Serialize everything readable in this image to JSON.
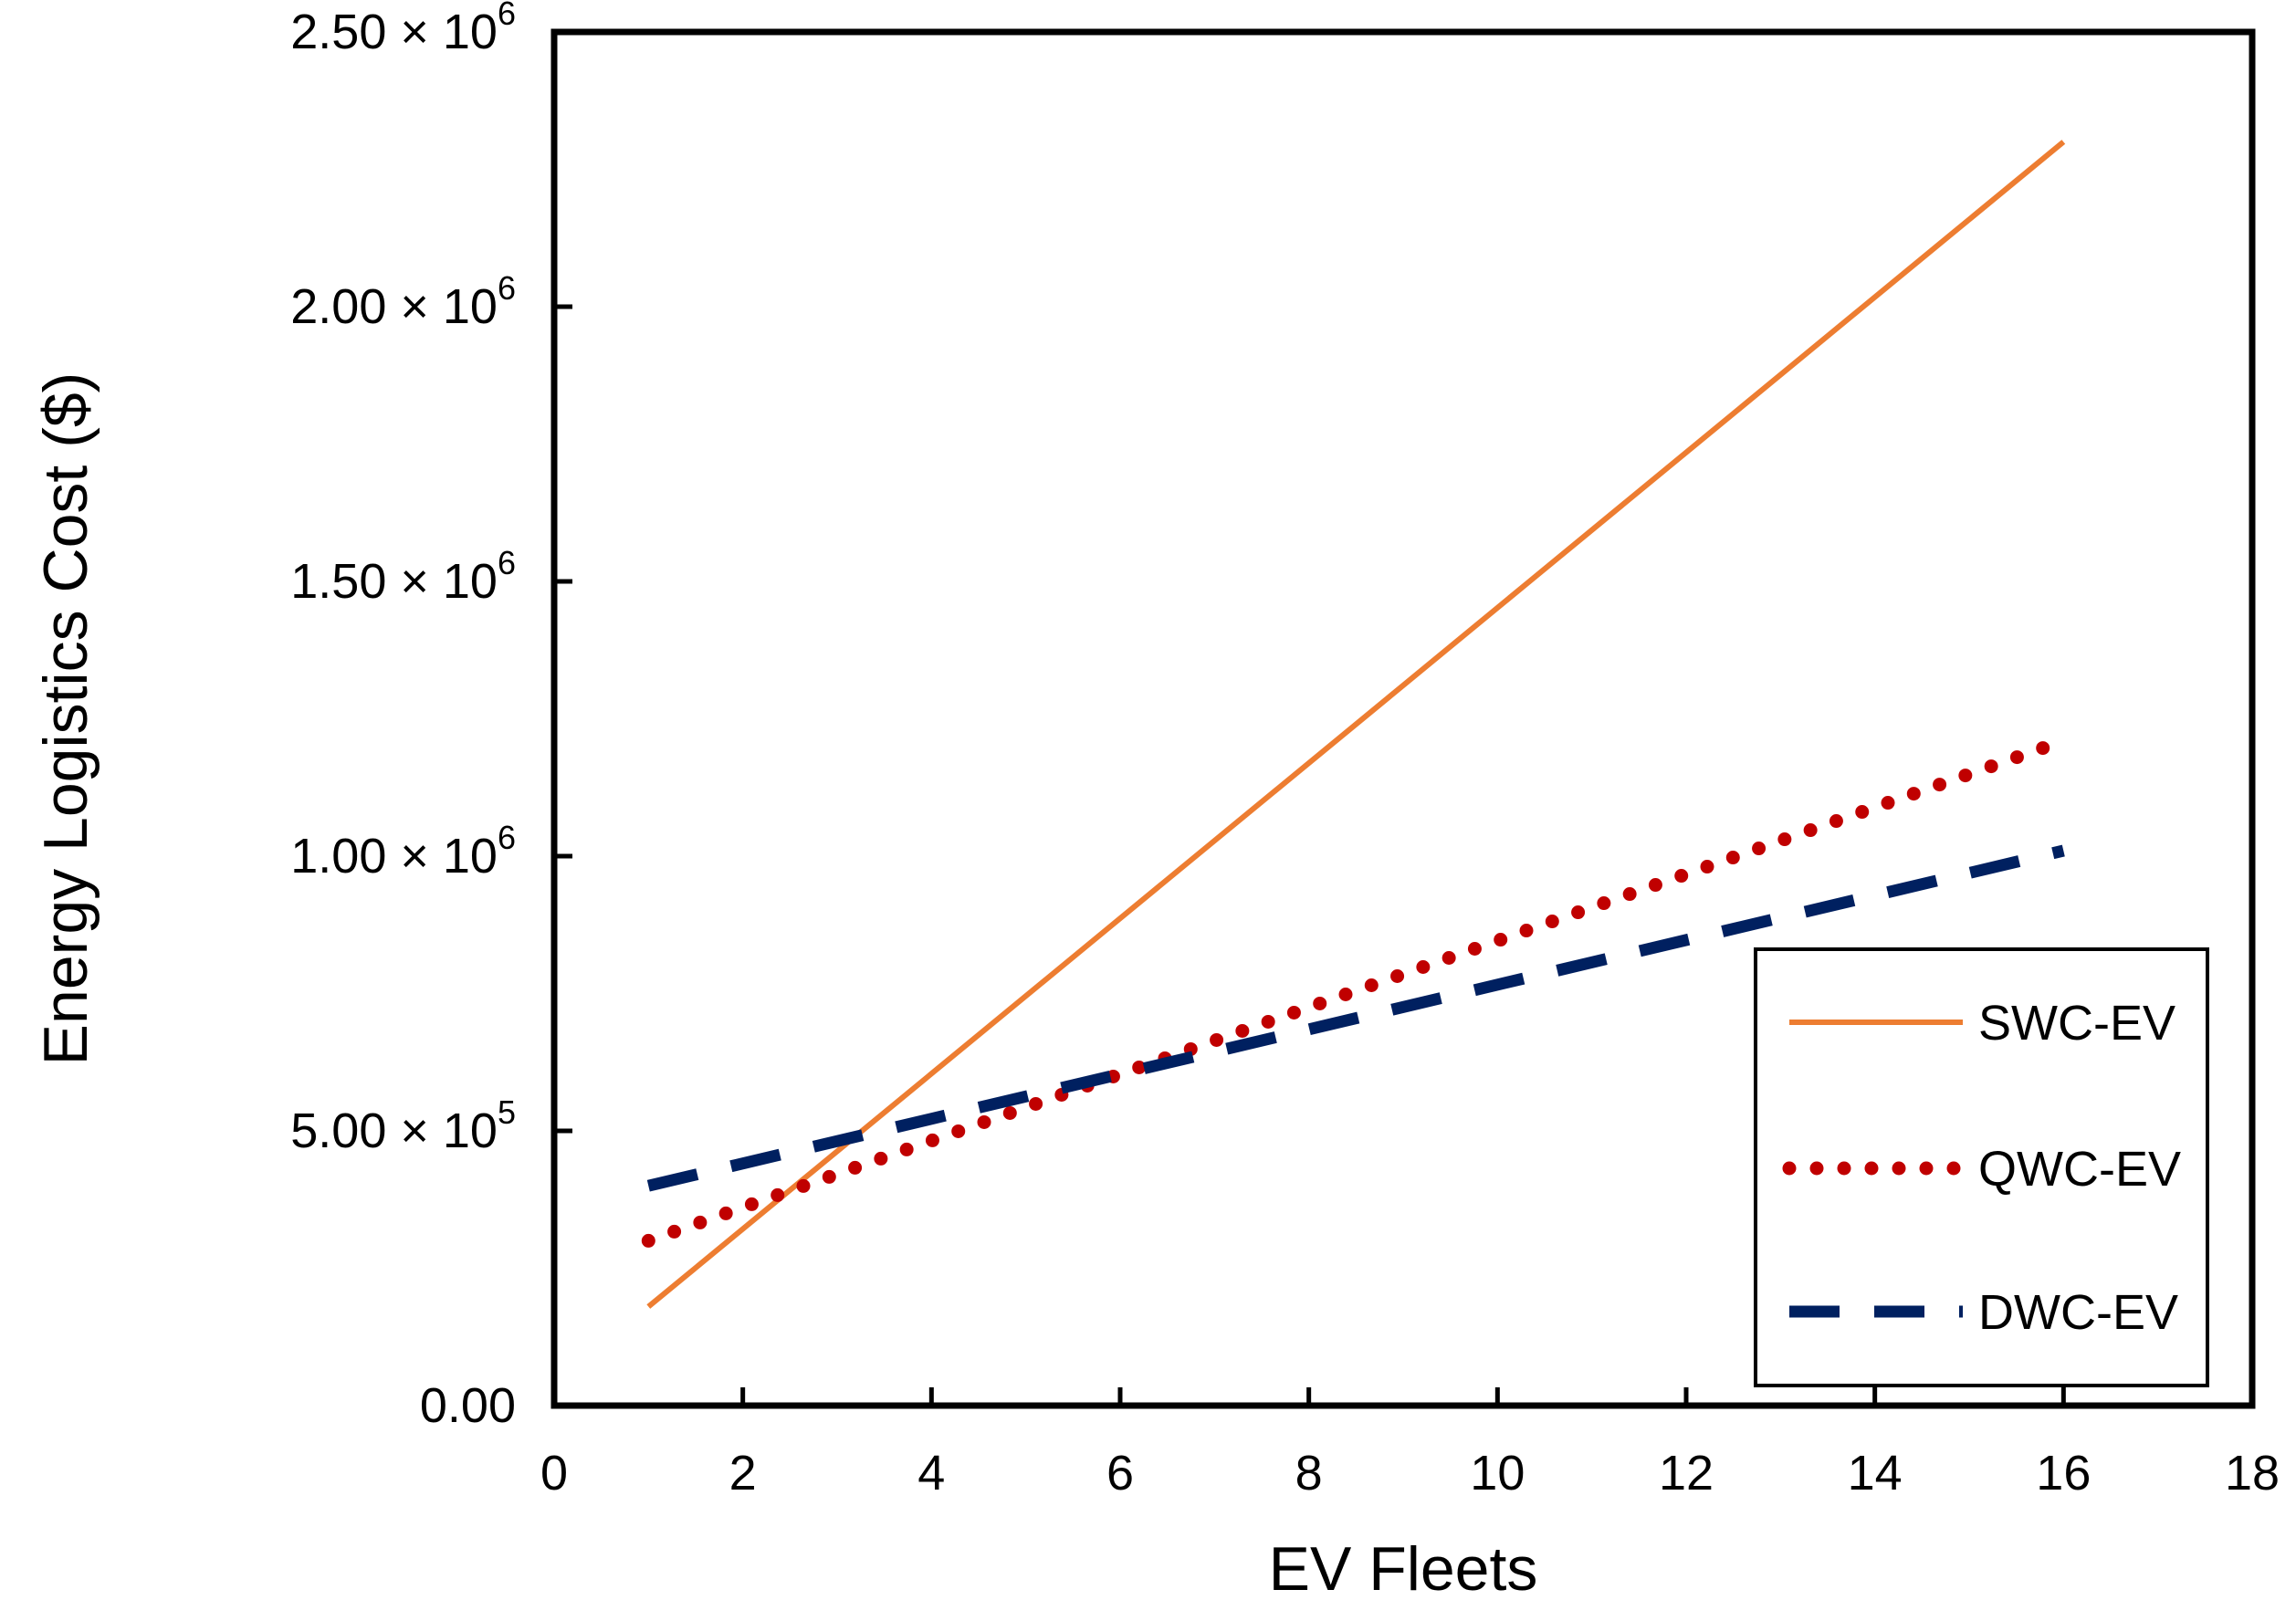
{
  "chart_data": {
    "type": "line",
    "title": "",
    "xlabel": "EV Fleets",
    "ylabel": "Energy Logistics Cost ($)",
    "xlim": [
      0,
      18
    ],
    "ylim": [
      0,
      2500000
    ],
    "grid": false,
    "x_ticks": [
      0,
      2,
      4,
      6,
      8,
      10,
      12,
      14,
      16,
      18
    ],
    "x_tick_labels": [
      "0",
      "2",
      "4",
      "6",
      "8",
      "10",
      "12",
      "14",
      "16",
      "18"
    ],
    "y_ticks": [
      {
        "value": 0,
        "mantissa": "0.00",
        "exponent": ""
      },
      {
        "value": 500000,
        "mantissa": "5.00",
        "exponent": "5"
      },
      {
        "value": 1000000,
        "mantissa": "1.00",
        "exponent": "6"
      },
      {
        "value": 1500000,
        "mantissa": "1.50",
        "exponent": "6"
      },
      {
        "value": 2000000,
        "mantissa": "2.00",
        "exponent": "6"
      },
      {
        "value": 2500000,
        "mantissa": "2.50",
        "exponent": "6"
      }
    ],
    "y_tick_times": "× 10",
    "legend_position": "bottom-right",
    "series": [
      {
        "name": "SWC-EV",
        "style": "solid",
        "color": "#ED7D31",
        "x": [
          1,
          16
        ],
        "y": [
          180000,
          2300000
        ]
      },
      {
        "name": "QWC-EV",
        "style": "dotted",
        "color": "#C00000",
        "x": [
          1,
          16
        ],
        "y": [
          300000,
          1210000
        ]
      },
      {
        "name": "DWC-EV",
        "style": "dashed",
        "color": "#002060",
        "x": [
          1,
          16
        ],
        "y": [
          400000,
          1010000
        ]
      }
    ]
  }
}
